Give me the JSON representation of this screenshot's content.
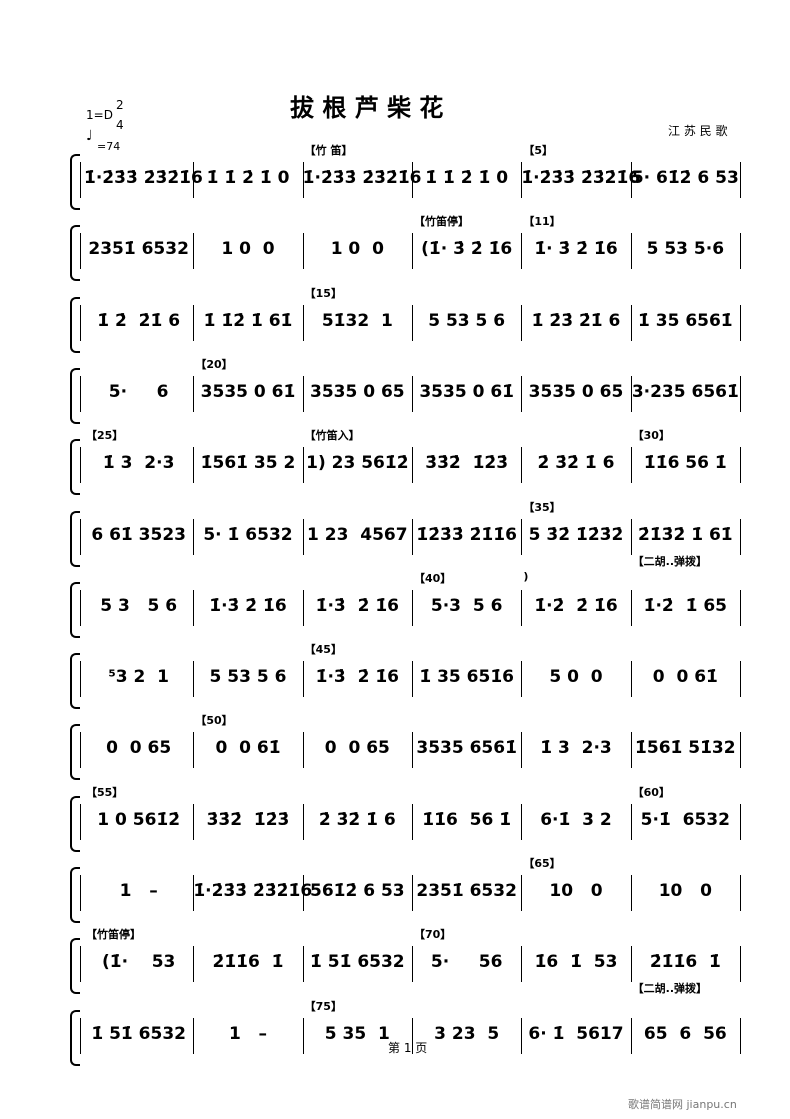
{
  "header": {
    "title": "拔 根 芦 柴 花",
    "key": "1=D",
    "time_top": "2",
    "time_bottom": "4",
    "tempo": "=74",
    "composer": "江 苏 民 歌"
  },
  "rows": [
    {
      "measures": [
        {
          "notes": "1̇·2̇3̇3̇ 2̇3̇2̇1̇6"
        },
        {
          "notes": "1̇ 1̇ 2̇ 1̇ 0"
        },
        {
          "notes": "1̇·2̇3̇3̇ 2̇3̇2̇1̇6",
          "above": "【竹 笛】"
        },
        {
          "notes": "1̇ 1̇ 2̇ 1̇ 0"
        },
        {
          "notes": "1̇·2̇3̇3̇ 2̇3̇2̇1̇6",
          "above": "【5】"
        },
        {
          "notes": "5· 61̇2̇ 6 53"
        }
      ]
    },
    {
      "measures": [
        {
          "notes": "2351̇ 6532"
        },
        {
          "notes": "1 0  0"
        },
        {
          "notes": "1 0  0"
        },
        {
          "notes": "(1̇· 3̇ 2̇ 1̇6",
          "above": "【竹笛停】"
        },
        {
          "notes": "1̇· 3̇ 2̇ 1̇6",
          "above": "【11】"
        },
        {
          "notes": "5 53 5·6"
        }
      ]
    },
    {
      "measures": [
        {
          "notes": "1̇ 2̇  2̇1̇ 6"
        },
        {
          "notes": "1̇ 1̇2̇ 1̇ 61̇"
        },
        {
          "notes": "51̇32  1",
          "above": "【15】"
        },
        {
          "notes": "5 53 5 6"
        },
        {
          "notes": "1̇ 2̇3̇ 2̇1̇ 6"
        },
        {
          "notes": "1̇ 35 6561̇"
        }
      ]
    },
    {
      "measures": [
        {
          "notes": "5·     6"
        },
        {
          "notes": "3535 0 61̇",
          "above": "【20】"
        },
        {
          "notes": "3535 0 65"
        },
        {
          "notes": "3535 0 61̇"
        },
        {
          "notes": "3535 0 65"
        },
        {
          "notes": "3·235 6561̇"
        }
      ]
    },
    {
      "measures": [
        {
          "notes": "1̇ 3  2·3",
          "above": "【25】"
        },
        {
          "notes": "1̇561̇ 35 2"
        },
        {
          "notes": "1) 23 561̇2̇",
          "above": "【竹笛入】"
        },
        {
          "notes": "3̇3̇2̇  1̇2̇3̇"
        },
        {
          "notes": "2̇ 3̇2̇ 1̇ 6"
        },
        {
          "notes": "1̇1̇6 56 1̇",
          "above": "【30】"
        }
      ]
    },
    {
      "measures": [
        {
          "notes": "6 61̇ 3523"
        },
        {
          "notes": "5· 1̇ 6532"
        },
        {
          "notes": "1 23  4567"
        },
        {
          "notes": "1̇2̇3̇3̇ 2̇1̇1̇6"
        },
        {
          "notes": "5 3̇2̇ 1̇2̇3̇2̇",
          "above": "【35】"
        },
        {
          "notes": "2̇1̇3̇2̇ 1̇ 61̇",
          "below": "【二胡..弹拨】"
        }
      ]
    },
    {
      "measures": [
        {
          "notes": "5 3   5 6"
        },
        {
          "notes": "1̇·3̇ 2̇ 1̇6"
        },
        {
          "notes": "1̇·3̇  2̇ 1̇6"
        },
        {
          "notes": "5·3  5 6",
          "above": "【40】"
        },
        {
          "notes": "1̇·2̇  2̇ 1̇6",
          "above": ")"
        },
        {
          "notes": "1̇·2̇  1̇ 65"
        }
      ]
    },
    {
      "measures": [
        {
          "notes": "⁵3 2  1"
        },
        {
          "notes": "5 53 5 6"
        },
        {
          "notes": "1̇·3̇  2̇ 1̇6",
          "above": "【45】"
        },
        {
          "notes": "1̇ 35 651̇6"
        },
        {
          "notes": "5 0  0"
        },
        {
          "notes": "0  0 61̇"
        }
      ]
    },
    {
      "measures": [
        {
          "notes": "0  0 65"
        },
        {
          "notes": "0  0 61̇",
          "above": "【50】"
        },
        {
          "notes": "0  0 65"
        },
        {
          "notes": "3535 6561̇"
        },
        {
          "notes": "1̇ 3  2·3"
        },
        {
          "notes": "1̇561̇ 51̇32"
        }
      ]
    },
    {
      "measures": [
        {
          "notes": "1 0 561̇2̇",
          "above": "【55】"
        },
        {
          "notes": "3̇3̇2̇  1̇2̇3̇"
        },
        {
          "notes": "2̇ 3̇2̇ 1̇ 6"
        },
        {
          "notes": "1̇1̇6  56 1̇"
        },
        {
          "notes": "6·1̇  3 2"
        },
        {
          "notes": "5·1̇  6532",
          "above": "【60】"
        }
      ]
    },
    {
      "measures": [
        {
          "notes": "1   –"
        },
        {
          "notes": "1̇·2̇3̇3̇ 2̇3̇2̇1̇6"
        },
        {
          "notes": "561̇2̇ 6 53"
        },
        {
          "notes": "2351̇ 6532"
        },
        {
          "notes": "10   0",
          "above": "【65】"
        },
        {
          "notes": "10   0"
        }
      ]
    },
    {
      "measures": [
        {
          "notes": "(1̇·    53",
          "above": "【竹笛停】"
        },
        {
          "notes": "2̇1̇1̇6  1̇"
        },
        {
          "notes": "1̇ 51̇ 6532"
        },
        {
          "notes": "5·     56",
          "above": "【70】"
        },
        {
          "notes": "1̇6  1̇  53"
        },
        {
          "notes": "2̇1̇1̇6  1̇",
          "below": "【二胡..弹拨】"
        }
      ]
    },
    {
      "measures": [
        {
          "notes": "1̇ 51̇ 6532"
        },
        {
          "notes": "1   –"
        },
        {
          "notes": "5 35  1",
          "above": "【75】"
        },
        {
          "notes": "3 23  5"
        },
        {
          "notes": "6· 1̇  5617"
        },
        {
          "notes": "65  6  56"
        }
      ]
    }
  ],
  "footer": {
    "page": "第 1 页",
    "watermark": "歌谱简谱网 jianpu.cn"
  }
}
